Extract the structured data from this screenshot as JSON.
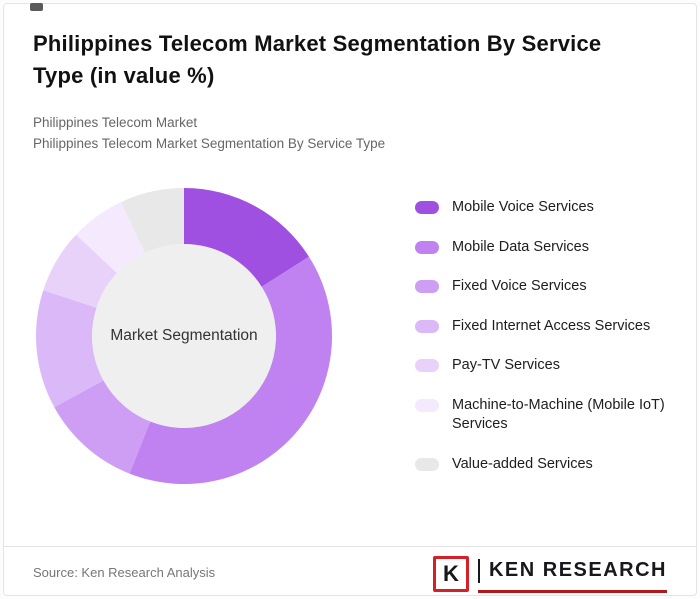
{
  "header": {
    "title": "Philippines Telecom Market Segmentation By Service Type (in value %)",
    "subtitle1": "Philippines Telecom Market",
    "subtitle2": "Philippines Telecom Market Segmentation By Service Type"
  },
  "chart_data": {
    "type": "pie",
    "donut": true,
    "title": "Philippines Telecom Market Segmentation By Service Type (in value %)",
    "center_label": "Market Segmentation",
    "legend_position": "right",
    "start_angle_deg": 0,
    "direction": "clockwise",
    "series": [
      {
        "name": "Mobile Voice Services",
        "value": 16,
        "color": "#a050e0"
      },
      {
        "name": "Mobile Data Services",
        "value": 40,
        "color": "#bf82f0"
      },
      {
        "name": "Fixed Voice Services",
        "value": 11,
        "color": "#cd9ef4"
      },
      {
        "name": "Fixed Internet Access Services",
        "value": 13,
        "color": "#dbb9f8"
      },
      {
        "name": "Pay-TV Services",
        "value": 7,
        "color": "#e8d2fa"
      },
      {
        "name": "Machine-to-Machine (Mobile IoT) Services",
        "value": 6,
        "color": "#f4e9fd"
      },
      {
        "name": "Value-added Services",
        "value": 7,
        "color": "#e8e8e8"
      }
    ],
    "inner_circle_color": "#efefef"
  },
  "footer": {
    "source": "Source: Ken Research Analysis",
    "brand_mark": "K",
    "brand_name": "KEN RESEARCH"
  }
}
